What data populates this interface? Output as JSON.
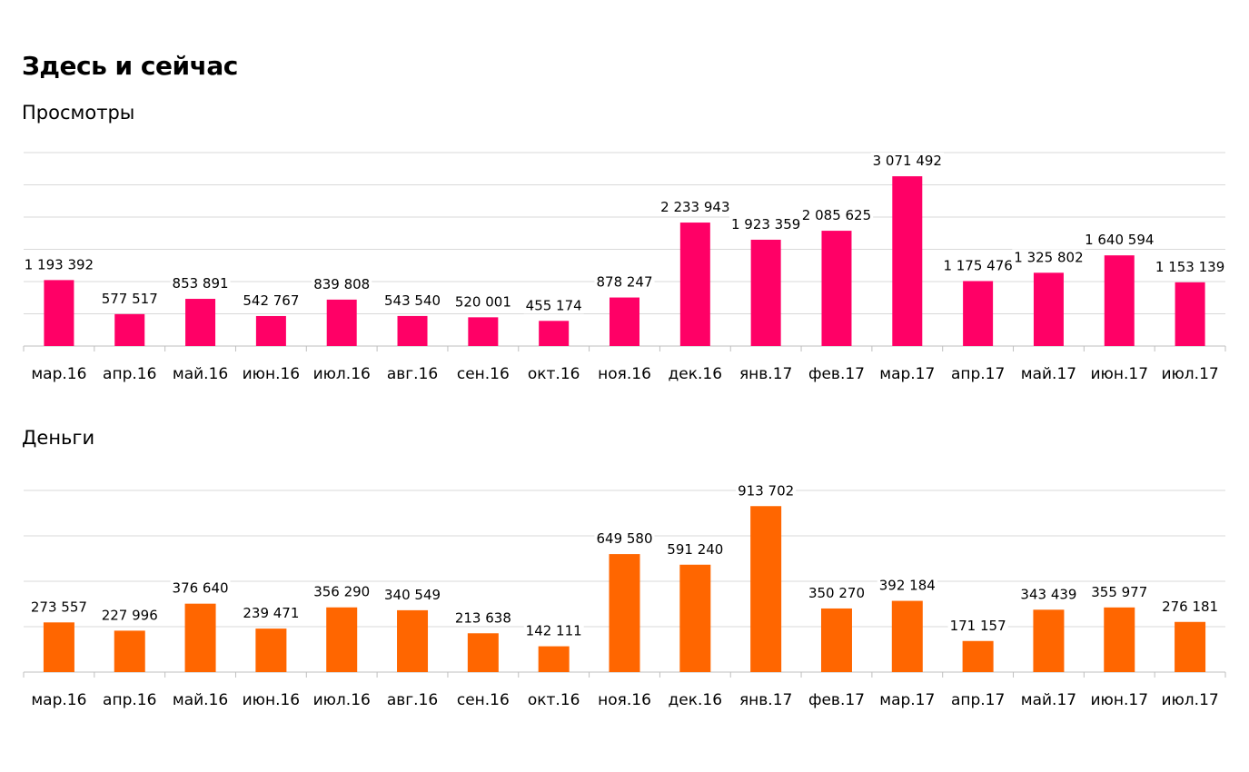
{
  "header": {
    "title": "Здесь и сейчас"
  },
  "chart_data": [
    {
      "type": "bar",
      "title": "Просмотры",
      "xlabel": "",
      "ylabel": "",
      "ylim": [
        0,
        3500000
      ],
      "grid": true,
      "color": "#ff0066",
      "categories": [
        "мар.16",
        "апр.16",
        "май.16",
        "июн.16",
        "июл.16",
        "авг.16",
        "сен.16",
        "окт.16",
        "ноя.16",
        "дек.16",
        "янв.17",
        "фев.17",
        "мар.17",
        "апр.17",
        "май.17",
        "июн.17",
        "июл.17"
      ],
      "values": [
        1193392,
        577517,
        853891,
        542767,
        839808,
        543540,
        520001,
        455174,
        878247,
        2233943,
        1923359,
        2085625,
        3071492,
        1175476,
        1325802,
        1640594,
        1153139
      ],
      "value_labels": [
        "1 193 392",
        "577 517",
        "853 891",
        "542 767",
        "839 808",
        "543 540",
        "520 001",
        "455 174",
        "878 247",
        "2 233 943",
        "1 923 359",
        "2 085 625",
        "3 071 492",
        "1 175 476",
        "1 325 802",
        "1 640 594",
        "1 153 139"
      ]
    },
    {
      "type": "bar",
      "title": "Деньги",
      "xlabel": "",
      "ylabel": "",
      "ylim": [
        0,
        1000000
      ],
      "grid": true,
      "color": "#ff6600",
      "categories": [
        "мар.16",
        "апр.16",
        "май.16",
        "июн.16",
        "июл.16",
        "авг.16",
        "сен.16",
        "окт.16",
        "ноя.16",
        "дек.16",
        "янв.17",
        "фев.17",
        "мар.17",
        "апр.17",
        "май.17",
        "июн.17",
        "июл.17"
      ],
      "values": [
        273557,
        227996,
        376640,
        239471,
        356290,
        340549,
        213638,
        142111,
        649580,
        591240,
        913702,
        350270,
        392184,
        171157,
        343439,
        355977,
        276181
      ],
      "value_labels": [
        "273 557",
        "227 996",
        "376 640",
        "239 471",
        "356 290",
        "340 549",
        "213 638",
        "142 111",
        "649 580",
        "591 240",
        "913 702",
        "350 270",
        "392 184",
        "171 157",
        "343 439",
        "355 977",
        "276 181"
      ]
    }
  ]
}
